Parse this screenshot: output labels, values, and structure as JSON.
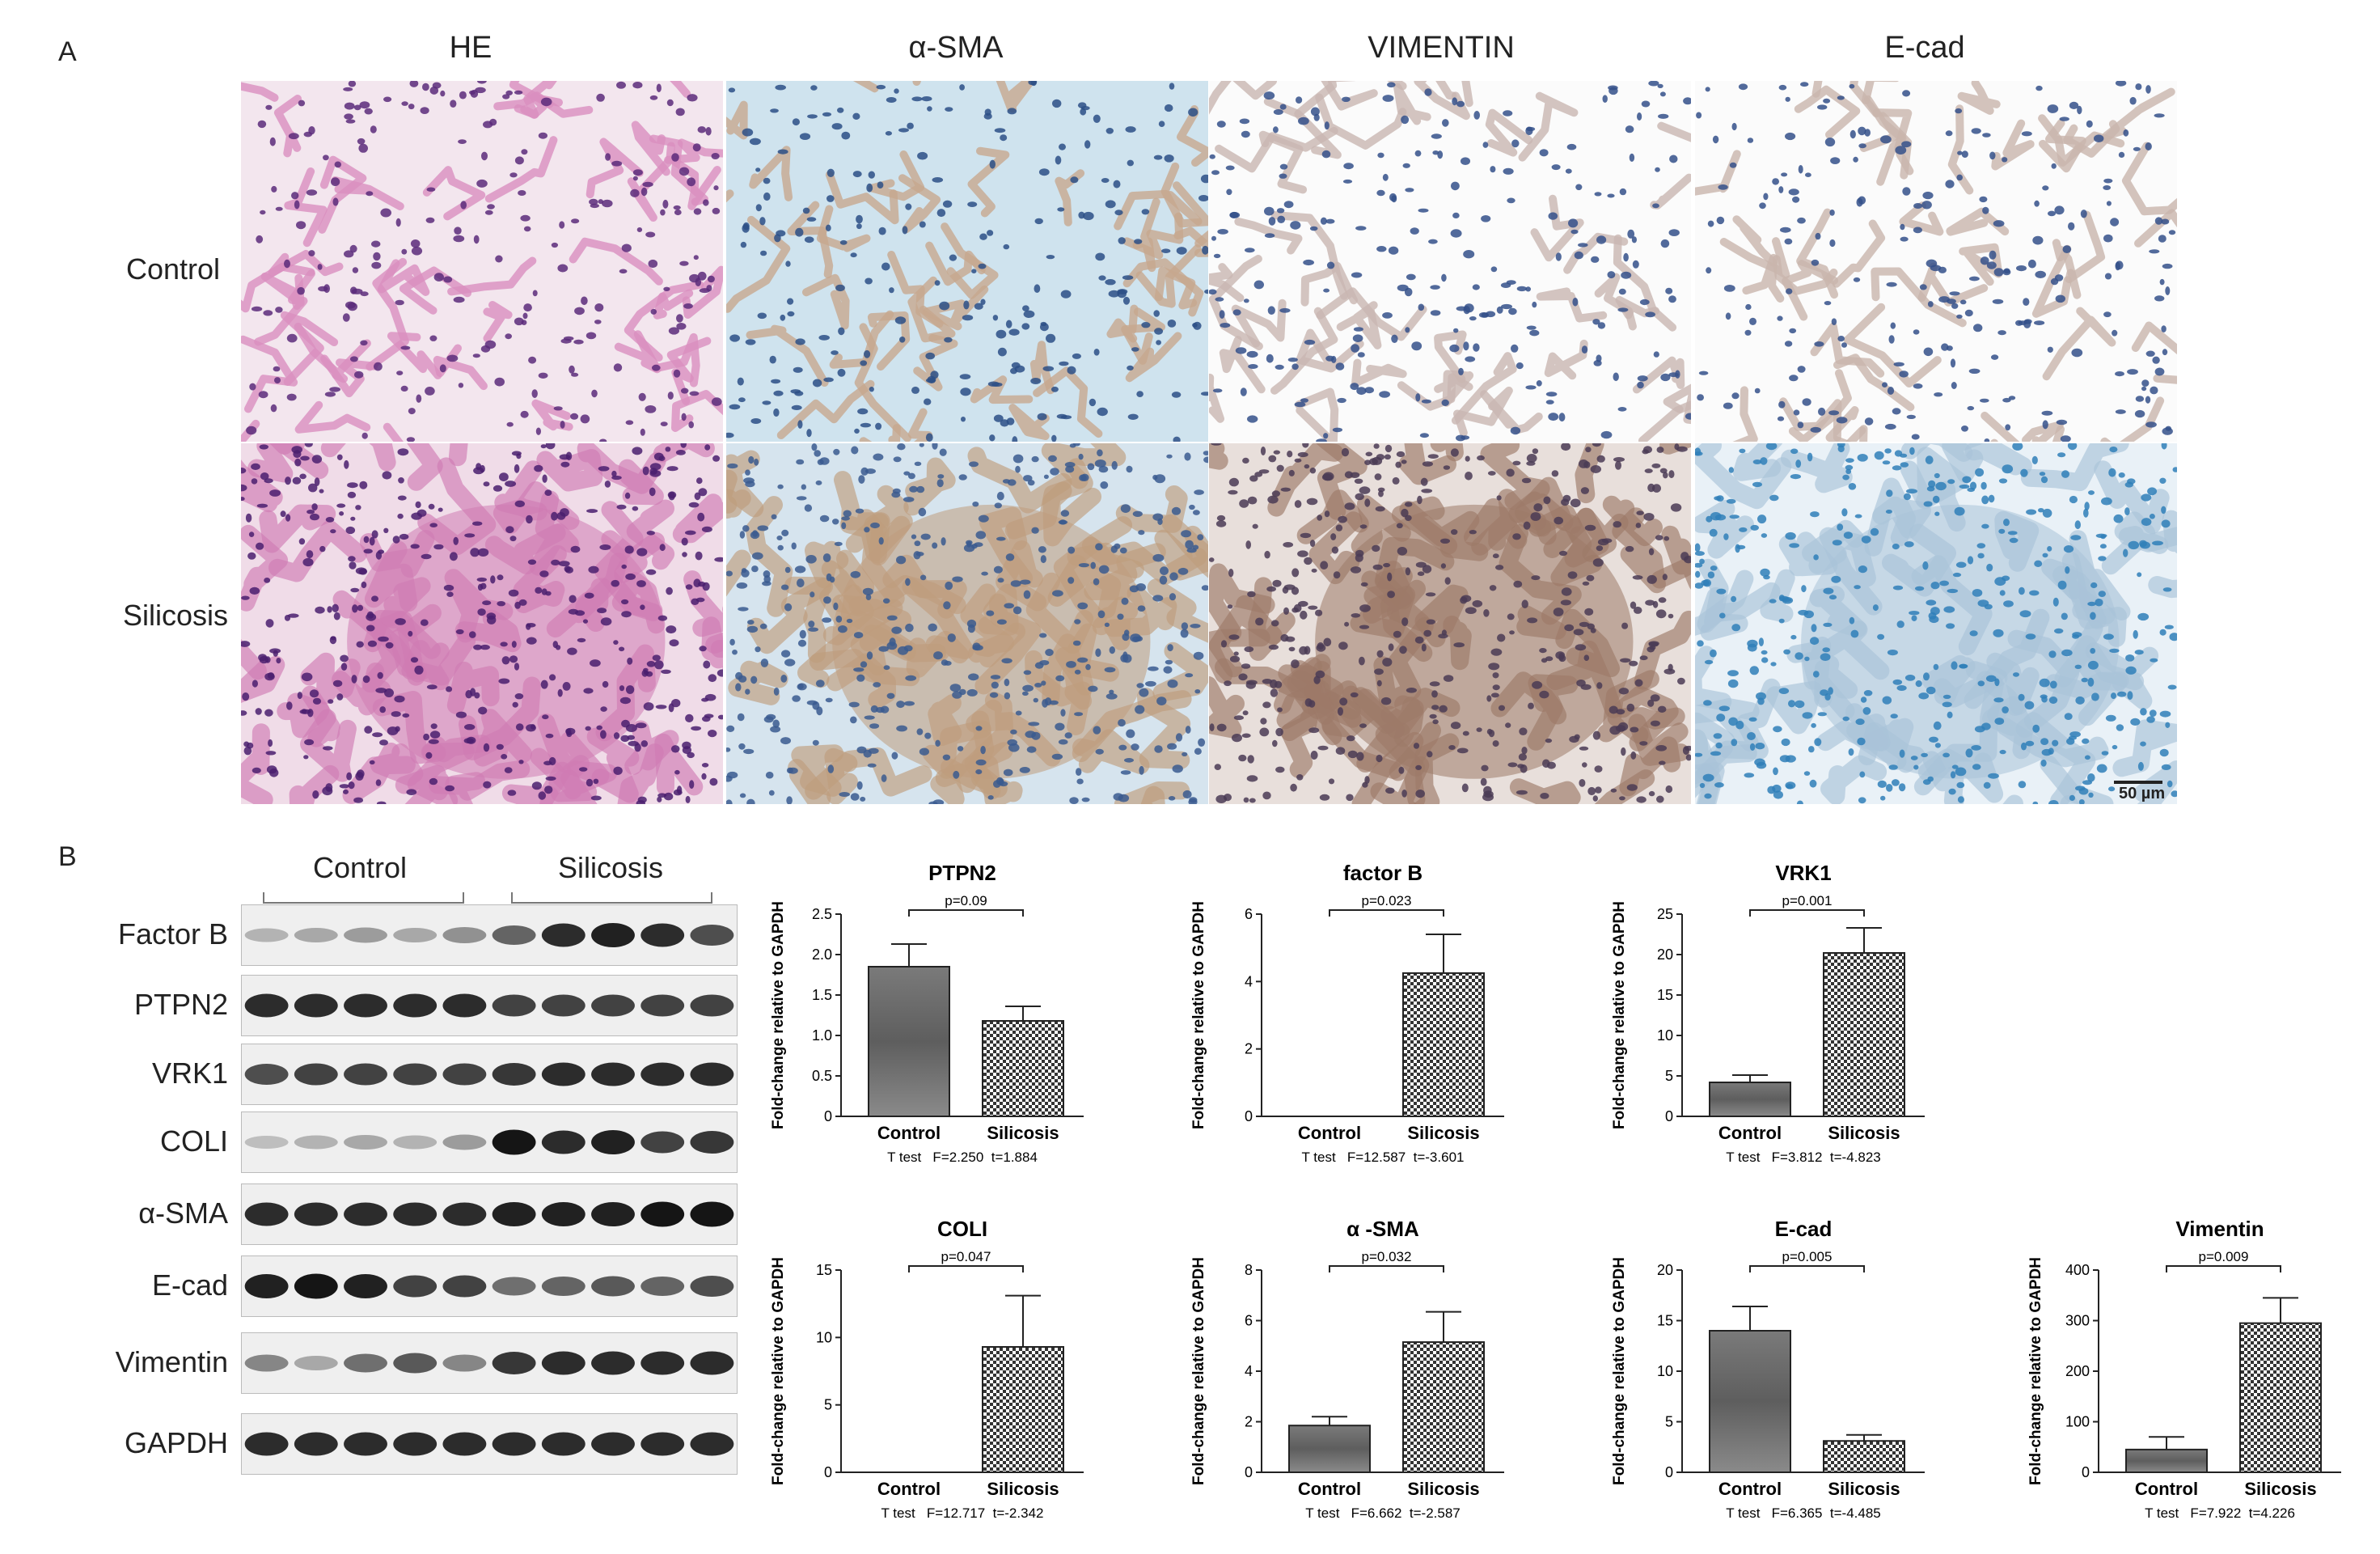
{
  "panel_a": {
    "letter": "A",
    "columns": [
      "HE",
      "α-SMA",
      "VIMENTIN",
      "E-cad"
    ],
    "rows": [
      "Control",
      "Silicosis"
    ],
    "scale_bar": "50 µm",
    "tiles": [
      {
        "row": 0,
        "col": 0,
        "stain": "HE",
        "group": "Control",
        "bg": "#f3e6ee",
        "tissue": "#d98fbf",
        "nuclei": "#5a2a7a",
        "density": "sparse"
      },
      {
        "row": 0,
        "col": 1,
        "stain": "α-SMA",
        "group": "Control",
        "bg": "#cfe3ee",
        "tissue": "#c7a78f",
        "nuclei": "#2b4f86",
        "density": "sparse"
      },
      {
        "row": 0,
        "col": 2,
        "stain": "VIMENTIN",
        "group": "Control",
        "bg": "#fbfbfb",
        "tissue": "#c9b7b1",
        "nuclei": "#34508a",
        "density": "sparse"
      },
      {
        "row": 0,
        "col": 3,
        "stain": "E-cad",
        "group": "Control",
        "bg": "#fbfbfb",
        "tissue": "#c9b5ad",
        "nuclei": "#34508a",
        "density": "sparse"
      },
      {
        "row": 1,
        "col": 0,
        "stain": "HE",
        "group": "Silicosis",
        "bg": "#f0dce8",
        "tissue": "#d07bb3",
        "nuclei": "#4a1f6e",
        "density": "dense"
      },
      {
        "row": 1,
        "col": 1,
        "stain": "α-SMA",
        "group": "Silicosis",
        "bg": "#d6e4ee",
        "tissue": "#bf9c7d",
        "nuclei": "#3a5a8f",
        "density": "dense"
      },
      {
        "row": 1,
        "col": 2,
        "stain": "VIMENTIN",
        "group": "Silicosis",
        "bg": "#e8dfdb",
        "tissue": "#9c7a68",
        "nuclei": "#4a3b55",
        "density": "dense"
      },
      {
        "row": 1,
        "col": 3,
        "stain": "E-cad",
        "group": "Silicosis",
        "bg": "#e9f1f7",
        "tissue": "#a9c3d8",
        "nuclei": "#2f7fb8",
        "density": "dense"
      }
    ]
  },
  "panel_b": {
    "letter": "B",
    "groups": [
      "Control",
      "Silicosis"
    ],
    "blots": [
      {
        "label": "Factor B",
        "intensities": [
          0.25,
          0.3,
          0.35,
          0.3,
          0.4,
          0.6,
          0.85,
          0.9,
          0.85,
          0.7
        ]
      },
      {
        "label": "PTPN2",
        "intensities": [
          0.85,
          0.85,
          0.85,
          0.85,
          0.85,
          0.75,
          0.75,
          0.75,
          0.75,
          0.75
        ]
      },
      {
        "label": "VRK1",
        "intensities": [
          0.7,
          0.75,
          0.75,
          0.75,
          0.75,
          0.8,
          0.85,
          0.85,
          0.85,
          0.85
        ]
      },
      {
        "label": "COLI",
        "intensities": [
          0.2,
          0.25,
          0.3,
          0.25,
          0.35,
          0.95,
          0.85,
          0.9,
          0.75,
          0.8
        ]
      },
      {
        "label": "α-SMA",
        "intensities": [
          0.85,
          0.85,
          0.85,
          0.85,
          0.85,
          0.9,
          0.9,
          0.9,
          0.95,
          0.95
        ]
      },
      {
        "label": "E-cad",
        "intensities": [
          0.9,
          0.95,
          0.9,
          0.75,
          0.75,
          0.55,
          0.6,
          0.65,
          0.6,
          0.7
        ]
      },
      {
        "label": "Vimentin",
        "intensities": [
          0.45,
          0.3,
          0.55,
          0.65,
          0.45,
          0.8,
          0.85,
          0.85,
          0.85,
          0.85
        ]
      },
      {
        "label": "GAPDH",
        "intensities": [
          0.85,
          0.85,
          0.85,
          0.85,
          0.85,
          0.85,
          0.85,
          0.85,
          0.85,
          0.85
        ]
      }
    ]
  },
  "chart_data": [
    {
      "type": "bar",
      "title": "PTPN2",
      "ylabel": "Fold-change relative to GAPDH",
      "categories": [
        "Control",
        "Silicosis"
      ],
      "values": [
        1.85,
        1.18
      ],
      "errors": [
        0.28,
        0.18
      ],
      "ylim": [
        0,
        2.5
      ],
      "yticks": [
        "0",
        "0.5",
        "1.0",
        "1.5",
        "2.0",
        "2.5"
      ],
      "pvalue": "p=0.09",
      "stats": "T test   F=2.250  t=1.884"
    },
    {
      "type": "bar",
      "title": "factor B",
      "ylabel": "Fold-change relative to GAPDH",
      "categories": [
        "Control",
        "Silicosis"
      ],
      "values": [
        0,
        4.25
      ],
      "errors": [
        0,
        1.15
      ],
      "ylim": [
        0,
        6
      ],
      "yticks": [
        "0",
        "2",
        "4",
        "6"
      ],
      "pvalue": "p=0.023",
      "stats": "T test   F=12.587  t=-3.601"
    },
    {
      "type": "bar",
      "title": "VRK1",
      "ylabel": "Fold-change relative to GAPDH",
      "categories": [
        "Control",
        "Silicosis"
      ],
      "values": [
        4.2,
        20.2
      ],
      "errors": [
        0.9,
        3.1
      ],
      "ylim": [
        0,
        25
      ],
      "yticks": [
        "0",
        "5",
        "10",
        "15",
        "20",
        "25"
      ],
      "pvalue": "p=0.001",
      "stats": "T test   F=3.812  t=-4.823"
    },
    {
      "type": "bar",
      "title": "COLI",
      "ylabel": "Fold-change relative to GAPDH",
      "categories": [
        "Control",
        "Silicosis"
      ],
      "values": [
        0,
        9.3
      ],
      "errors": [
        0,
        3.8
      ],
      "ylim": [
        0,
        15
      ],
      "yticks": [
        "0",
        "5",
        "10",
        "15"
      ],
      "pvalue": "p=0.047",
      "stats": "T test   F=12.717  t=-2.342"
    },
    {
      "type": "bar",
      "title": "α -SMA",
      "ylabel": "Fold-change relative to GAPDH",
      "categories": [
        "Control",
        "Silicosis"
      ],
      "values": [
        1.85,
        5.15
      ],
      "errors": [
        0.35,
        1.2
      ],
      "ylim": [
        0,
        8
      ],
      "yticks": [
        "0",
        "2",
        "4",
        "6",
        "8"
      ],
      "pvalue": "p=0.032",
      "stats": "T test   F=6.662  t=-2.587"
    },
    {
      "type": "bar",
      "title": "E-cad",
      "ylabel": "Fold-change relative to GAPDH",
      "categories": [
        "Control",
        "Silicosis"
      ],
      "values": [
        14.0,
        3.1
      ],
      "errors": [
        2.4,
        0.6
      ],
      "ylim": [
        0,
        20
      ],
      "yticks": [
        "0",
        "5",
        "10",
        "15",
        "20"
      ],
      "pvalue": "p=0.005",
      "stats": "T test   F=6.365  t=-4.485"
    },
    {
      "type": "bar",
      "title": "Vimentin",
      "ylabel": "Fold-change relative to GAPDH",
      "categories": [
        "Control",
        "Silicosis"
      ],
      "values": [
        45,
        295
      ],
      "errors": [
        25,
        50
      ],
      "ylim": [
        0,
        400
      ],
      "yticks": [
        "0",
        "100",
        "200",
        "300",
        "400"
      ],
      "pvalue": "p=0.009",
      "stats": "T test   F=7.922  t=4.226"
    }
  ]
}
